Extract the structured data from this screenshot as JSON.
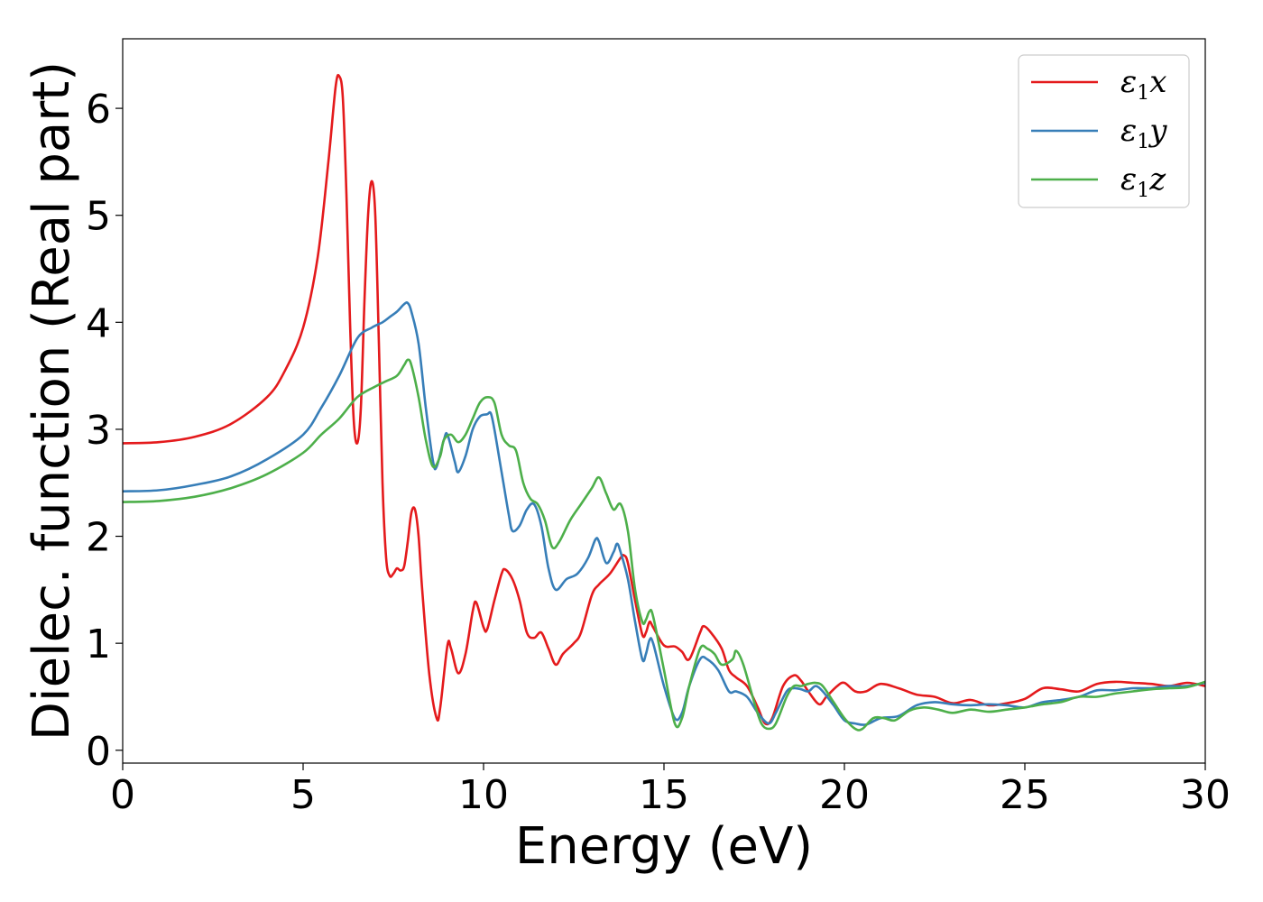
{
  "chart_data": {
    "type": "line",
    "title": "",
    "xlabel": "Energy (eV)",
    "ylabel": "Dielec. function (Real part)",
    "xlim": [
      0,
      30
    ],
    "ylim": [
      -0.12,
      6.65
    ],
    "xticks": [
      0,
      5,
      10,
      15,
      20,
      25,
      30
    ],
    "xtick_labels": [
      "0",
      "5",
      "10",
      "15",
      "20",
      "25",
      "30"
    ],
    "yticks": [
      0,
      1,
      2,
      3,
      4,
      5,
      6
    ],
    "ytick_labels": [
      "0",
      "1",
      "2",
      "3",
      "4",
      "5",
      "6"
    ],
    "grid": false,
    "legend_position": "top-right",
    "series": [
      {
        "name": "ε₁x",
        "legend": {
          "base": "ε",
          "sub": "1",
          "axis": "x"
        },
        "color": "#e41a1c",
        "points": [
          [
            0,
            2.87
          ],
          [
            1,
            2.88
          ],
          [
            2,
            2.93
          ],
          [
            3,
            3.05
          ],
          [
            4,
            3.3
          ],
          [
            4.5,
            3.55
          ],
          [
            5,
            3.95
          ],
          [
            5.4,
            4.6
          ],
          [
            5.7,
            5.5
          ],
          [
            5.9,
            6.2
          ],
          [
            6.0,
            6.3
          ],
          [
            6.1,
            6.1
          ],
          [
            6.2,
            5.2
          ],
          [
            6.3,
            4.0
          ],
          [
            6.4,
            3.1
          ],
          [
            6.5,
            2.87
          ],
          [
            6.6,
            3.2
          ],
          [
            6.7,
            4.2
          ],
          [
            6.8,
            5.0
          ],
          [
            6.9,
            5.32
          ],
          [
            7.0,
            5.0
          ],
          [
            7.1,
            3.8
          ],
          [
            7.2,
            2.5
          ],
          [
            7.3,
            1.8
          ],
          [
            7.4,
            1.63
          ],
          [
            7.5,
            1.65
          ],
          [
            7.6,
            1.7
          ],
          [
            7.7,
            1.68
          ],
          [
            7.8,
            1.72
          ],
          [
            7.9,
            1.95
          ],
          [
            8.0,
            2.22
          ],
          [
            8.1,
            2.25
          ],
          [
            8.2,
            2.0
          ],
          [
            8.3,
            1.5
          ],
          [
            8.5,
            0.7
          ],
          [
            8.7,
            0.3
          ],
          [
            8.8,
            0.4
          ],
          [
            9.0,
            0.98
          ],
          [
            9.1,
            0.95
          ],
          [
            9.3,
            0.72
          ],
          [
            9.5,
            0.9
          ],
          [
            9.7,
            1.3
          ],
          [
            9.8,
            1.38
          ],
          [
            10.0,
            1.15
          ],
          [
            10.1,
            1.13
          ],
          [
            10.3,
            1.4
          ],
          [
            10.5,
            1.65
          ],
          [
            10.6,
            1.69
          ],
          [
            10.8,
            1.6
          ],
          [
            11.0,
            1.4
          ],
          [
            11.2,
            1.1
          ],
          [
            11.4,
            1.05
          ],
          [
            11.6,
            1.1
          ],
          [
            11.8,
            0.95
          ],
          [
            12.0,
            0.8
          ],
          [
            12.2,
            0.9
          ],
          [
            12.5,
            1.0
          ],
          [
            12.7,
            1.1
          ],
          [
            13.0,
            1.45
          ],
          [
            13.2,
            1.55
          ],
          [
            13.5,
            1.65
          ],
          [
            13.8,
            1.8
          ],
          [
            13.9,
            1.82
          ],
          [
            14.0,
            1.75
          ],
          [
            14.2,
            1.4
          ],
          [
            14.4,
            1.08
          ],
          [
            14.5,
            1.1
          ],
          [
            14.6,
            1.2
          ],
          [
            14.7,
            1.15
          ],
          [
            15.0,
            0.98
          ],
          [
            15.3,
            0.97
          ],
          [
            15.5,
            0.92
          ],
          [
            15.7,
            0.85
          ],
          [
            16.0,
            1.1
          ],
          [
            16.1,
            1.16
          ],
          [
            16.3,
            1.1
          ],
          [
            16.6,
            0.95
          ],
          [
            16.8,
            0.75
          ],
          [
            17.0,
            0.68
          ],
          [
            17.3,
            0.6
          ],
          [
            17.6,
            0.4
          ],
          [
            17.8,
            0.25
          ],
          [
            18.0,
            0.3
          ],
          [
            18.3,
            0.6
          ],
          [
            18.6,
            0.7
          ],
          [
            18.8,
            0.65
          ],
          [
            19.0,
            0.55
          ],
          [
            19.3,
            0.43
          ],
          [
            19.5,
            0.5
          ],
          [
            19.8,
            0.6
          ],
          [
            20.0,
            0.63
          ],
          [
            20.3,
            0.55
          ],
          [
            20.6,
            0.55
          ],
          [
            21.0,
            0.62
          ],
          [
            21.5,
            0.58
          ],
          [
            22.0,
            0.52
          ],
          [
            22.5,
            0.5
          ],
          [
            23.0,
            0.44
          ],
          [
            23.5,
            0.47
          ],
          [
            24.0,
            0.42
          ],
          [
            24.5,
            0.44
          ],
          [
            25.0,
            0.48
          ],
          [
            25.5,
            0.58
          ],
          [
            26.0,
            0.57
          ],
          [
            26.5,
            0.55
          ],
          [
            27.0,
            0.62
          ],
          [
            27.5,
            0.64
          ],
          [
            28.0,
            0.63
          ],
          [
            28.5,
            0.62
          ],
          [
            29.0,
            0.6
          ],
          [
            29.5,
            0.63
          ],
          [
            30.0,
            0.6
          ]
        ]
      },
      {
        "name": "ε₁y",
        "legend": {
          "base": "ε",
          "sub": "1",
          "axis": "y"
        },
        "color": "#377eb8",
        "points": [
          [
            0,
            2.42
          ],
          [
            1,
            2.43
          ],
          [
            2,
            2.48
          ],
          [
            3,
            2.56
          ],
          [
            4,
            2.72
          ],
          [
            5,
            2.95
          ],
          [
            5.5,
            3.2
          ],
          [
            6,
            3.5
          ],
          [
            6.5,
            3.85
          ],
          [
            6.9,
            3.95
          ],
          [
            7.2,
            4.0
          ],
          [
            7.4,
            4.05
          ],
          [
            7.6,
            4.1
          ],
          [
            7.8,
            4.17
          ],
          [
            7.9,
            4.18
          ],
          [
            8.0,
            4.1
          ],
          [
            8.2,
            3.8
          ],
          [
            8.4,
            3.2
          ],
          [
            8.6,
            2.7
          ],
          [
            8.7,
            2.65
          ],
          [
            8.9,
            2.9
          ],
          [
            9.0,
            2.95
          ],
          [
            9.2,
            2.7
          ],
          [
            9.3,
            2.6
          ],
          [
            9.5,
            2.75
          ],
          [
            9.7,
            3.0
          ],
          [
            9.9,
            3.12
          ],
          [
            10.1,
            3.14
          ],
          [
            10.2,
            3.15
          ],
          [
            10.3,
            3.0
          ],
          [
            10.5,
            2.6
          ],
          [
            10.7,
            2.2
          ],
          [
            10.8,
            2.05
          ],
          [
            11.0,
            2.1
          ],
          [
            11.2,
            2.25
          ],
          [
            11.4,
            2.3
          ],
          [
            11.6,
            2.1
          ],
          [
            11.8,
            1.7
          ],
          [
            12.0,
            1.5
          ],
          [
            12.3,
            1.6
          ],
          [
            12.6,
            1.65
          ],
          [
            12.9,
            1.8
          ],
          [
            13.1,
            1.97
          ],
          [
            13.2,
            1.95
          ],
          [
            13.4,
            1.75
          ],
          [
            13.6,
            1.85
          ],
          [
            13.7,
            1.93
          ],
          [
            13.8,
            1.85
          ],
          [
            14.0,
            1.6
          ],
          [
            14.2,
            1.2
          ],
          [
            14.4,
            0.85
          ],
          [
            14.5,
            0.9
          ],
          [
            14.6,
            1.03
          ],
          [
            14.7,
            1.0
          ],
          [
            15.0,
            0.6
          ],
          [
            15.3,
            0.3
          ],
          [
            15.5,
            0.35
          ],
          [
            15.7,
            0.6
          ],
          [
            16.0,
            0.85
          ],
          [
            16.2,
            0.85
          ],
          [
            16.5,
            0.75
          ],
          [
            16.8,
            0.55
          ],
          [
            17.0,
            0.55
          ],
          [
            17.3,
            0.5
          ],
          [
            17.6,
            0.35
          ],
          [
            17.9,
            0.25
          ],
          [
            18.1,
            0.35
          ],
          [
            18.4,
            0.55
          ],
          [
            18.6,
            0.58
          ],
          [
            18.8,
            0.57
          ],
          [
            19.0,
            0.55
          ],
          [
            19.2,
            0.6
          ],
          [
            19.4,
            0.55
          ],
          [
            19.7,
            0.42
          ],
          [
            20.0,
            0.28
          ],
          [
            20.3,
            0.25
          ],
          [
            20.6,
            0.24
          ],
          [
            21.0,
            0.3
          ],
          [
            21.5,
            0.32
          ],
          [
            22.0,
            0.42
          ],
          [
            22.5,
            0.45
          ],
          [
            23.0,
            0.43
          ],
          [
            23.5,
            0.42
          ],
          [
            24.0,
            0.43
          ],
          [
            24.5,
            0.42
          ],
          [
            25.0,
            0.4
          ],
          [
            25.5,
            0.45
          ],
          [
            26.0,
            0.47
          ],
          [
            26.5,
            0.5
          ],
          [
            27.0,
            0.56
          ],
          [
            27.5,
            0.56
          ],
          [
            28.0,
            0.58
          ],
          [
            28.5,
            0.58
          ],
          [
            29.0,
            0.6
          ],
          [
            29.5,
            0.6
          ],
          [
            30.0,
            0.63
          ]
        ]
      },
      {
        "name": "ε₁z",
        "legend": {
          "base": "ε",
          "sub": "1",
          "axis": "z"
        },
        "color": "#4daf4a",
        "points": [
          [
            0,
            2.32
          ],
          [
            1,
            2.33
          ],
          [
            2,
            2.37
          ],
          [
            3,
            2.45
          ],
          [
            4,
            2.58
          ],
          [
            5,
            2.78
          ],
          [
            5.5,
            2.95
          ],
          [
            6,
            3.1
          ],
          [
            6.5,
            3.3
          ],
          [
            7.0,
            3.4
          ],
          [
            7.3,
            3.45
          ],
          [
            7.6,
            3.5
          ],
          [
            7.8,
            3.6
          ],
          [
            7.9,
            3.65
          ],
          [
            8.0,
            3.6
          ],
          [
            8.2,
            3.3
          ],
          [
            8.4,
            2.9
          ],
          [
            8.6,
            2.65
          ],
          [
            8.8,
            2.75
          ],
          [
            8.9,
            2.9
          ],
          [
            9.1,
            2.95
          ],
          [
            9.3,
            2.88
          ],
          [
            9.5,
            2.95
          ],
          [
            9.7,
            3.1
          ],
          [
            9.9,
            3.25
          ],
          [
            10.1,
            3.3
          ],
          [
            10.3,
            3.25
          ],
          [
            10.5,
            2.95
          ],
          [
            10.7,
            2.85
          ],
          [
            10.9,
            2.8
          ],
          [
            11.1,
            2.5
          ],
          [
            11.3,
            2.35
          ],
          [
            11.5,
            2.3
          ],
          [
            11.7,
            2.15
          ],
          [
            11.9,
            1.9
          ],
          [
            12.1,
            1.95
          ],
          [
            12.4,
            2.15
          ],
          [
            12.7,
            2.3
          ],
          [
            13.0,
            2.45
          ],
          [
            13.2,
            2.55
          ],
          [
            13.4,
            2.4
          ],
          [
            13.6,
            2.25
          ],
          [
            13.8,
            2.3
          ],
          [
            14.0,
            2.05
          ],
          [
            14.2,
            1.5
          ],
          [
            14.4,
            1.2
          ],
          [
            14.5,
            1.22
          ],
          [
            14.6,
            1.3
          ],
          [
            14.7,
            1.25
          ],
          [
            15.0,
            0.75
          ],
          [
            15.3,
            0.25
          ],
          [
            15.5,
            0.3
          ],
          [
            15.7,
            0.6
          ],
          [
            16.0,
            0.95
          ],
          [
            16.2,
            0.95
          ],
          [
            16.4,
            0.9
          ],
          [
            16.6,
            0.8
          ],
          [
            16.9,
            0.85
          ],
          [
            17.0,
            0.93
          ],
          [
            17.2,
            0.8
          ],
          [
            17.5,
            0.45
          ],
          [
            17.7,
            0.25
          ],
          [
            17.9,
            0.2
          ],
          [
            18.1,
            0.25
          ],
          [
            18.4,
            0.5
          ],
          [
            18.6,
            0.6
          ],
          [
            18.8,
            0.6
          ],
          [
            19.0,
            0.62
          ],
          [
            19.2,
            0.63
          ],
          [
            19.4,
            0.6
          ],
          [
            19.7,
            0.45
          ],
          [
            20.0,
            0.3
          ],
          [
            20.3,
            0.2
          ],
          [
            20.5,
            0.2
          ],
          [
            20.8,
            0.3
          ],
          [
            21.1,
            0.3
          ],
          [
            21.4,
            0.28
          ],
          [
            21.8,
            0.37
          ],
          [
            22.2,
            0.4
          ],
          [
            22.6,
            0.38
          ],
          [
            23.0,
            0.35
          ],
          [
            23.5,
            0.38
          ],
          [
            24.0,
            0.36
          ],
          [
            24.5,
            0.38
          ],
          [
            25.0,
            0.4
          ],
          [
            25.5,
            0.43
          ],
          [
            26.0,
            0.45
          ],
          [
            26.5,
            0.5
          ],
          [
            27.0,
            0.5
          ],
          [
            27.5,
            0.53
          ],
          [
            28.0,
            0.55
          ],
          [
            28.5,
            0.57
          ],
          [
            29.0,
            0.58
          ],
          [
            29.5,
            0.59
          ],
          [
            30.0,
            0.64
          ]
        ]
      }
    ]
  }
}
